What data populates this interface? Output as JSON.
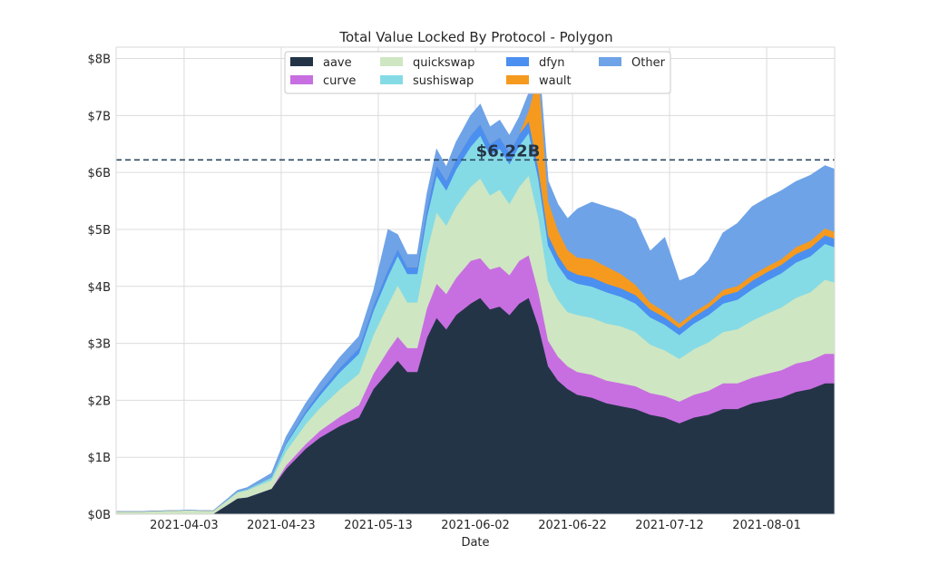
{
  "chart_data": {
    "type": "area",
    "title": "Total Value Locked By Protocol - Polygon",
    "xlabel": "Date",
    "ylabel": "",
    "y_ticks": [
      "$0B",
      "$1B",
      "$2B",
      "$3B",
      "$4B",
      "$5B",
      "$6B",
      "$7B",
      "$8B"
    ],
    "ylim": [
      0,
      8.2
    ],
    "x_range": [
      "2021-03-20",
      "2021-08-15"
    ],
    "x_ticks": [
      "2021-04-03",
      "2021-04-23",
      "2021-05-13",
      "2021-06-02",
      "2021-06-22",
      "2021-07-12",
      "2021-08-01"
    ],
    "grid": true,
    "legend_position": "top-center",
    "reference_line": {
      "value": 6.22,
      "label": "$6.22B",
      "style": "dashed",
      "color": "#2b4a63"
    },
    "dates": [
      "2021-03-20",
      "2021-03-25",
      "2021-03-30",
      "2021-04-04",
      "2021-04-09",
      "2021-04-14",
      "2021-04-16",
      "2021-04-21",
      "2021-04-24",
      "2021-04-28",
      "2021-05-01",
      "2021-05-05",
      "2021-05-09",
      "2021-05-12",
      "2021-05-15",
      "2021-05-17",
      "2021-05-19",
      "2021-05-21",
      "2021-05-23",
      "2021-05-25",
      "2021-05-27",
      "2021-05-29",
      "2021-06-01",
      "2021-06-03",
      "2021-06-05",
      "2021-06-07",
      "2021-06-09",
      "2021-06-11",
      "2021-06-13",
      "2021-06-15",
      "2021-06-17",
      "2021-06-19",
      "2021-06-21",
      "2021-06-23",
      "2021-06-26",
      "2021-06-29",
      "2021-07-02",
      "2021-07-05",
      "2021-07-08",
      "2021-07-11",
      "2021-07-14",
      "2021-07-17",
      "2021-07-20",
      "2021-07-23",
      "2021-07-26",
      "2021-07-29",
      "2021-08-01",
      "2021-08-04",
      "2021-08-07",
      "2021-08-10",
      "2021-08-13",
      "2021-08-15"
    ],
    "series": [
      {
        "name": "aave",
        "color": "#233447",
        "values": [
          0.01,
          0.01,
          0.01,
          0.01,
          0.01,
          0.28,
          0.3,
          0.45,
          0.8,
          1.15,
          1.35,
          1.55,
          1.7,
          2.2,
          2.5,
          2.7,
          2.5,
          2.5,
          3.1,
          3.45,
          3.25,
          3.5,
          3.7,
          3.8,
          3.6,
          3.65,
          3.5,
          3.7,
          3.8,
          3.3,
          2.6,
          2.35,
          2.2,
          2.1,
          2.05,
          1.95,
          1.9,
          1.85,
          1.75,
          1.7,
          1.6,
          1.7,
          1.75,
          1.85,
          1.85,
          1.95,
          2.0,
          2.05,
          2.15,
          2.2,
          2.3,
          2.3
        ]
      },
      {
        "name": "curve",
        "color": "#c76fe0",
        "values": [
          0,
          0,
          0,
          0,
          0,
          0,
          0,
          0,
          0.06,
          0.08,
          0.12,
          0.16,
          0.22,
          0.27,
          0.38,
          0.42,
          0.42,
          0.42,
          0.52,
          0.6,
          0.62,
          0.65,
          0.75,
          0.7,
          0.7,
          0.7,
          0.7,
          0.75,
          0.75,
          0.6,
          0.45,
          0.42,
          0.4,
          0.4,
          0.4,
          0.4,
          0.4,
          0.4,
          0.38,
          0.38,
          0.38,
          0.4,
          0.42,
          0.45,
          0.45,
          0.45,
          0.47,
          0.48,
          0.5,
          0.5,
          0.52,
          0.52
        ]
      },
      {
        "name": "quickswap",
        "color": "#cfe6c2",
        "values": [
          0.04,
          0.04,
          0.05,
          0.06,
          0.05,
          0.1,
          0.12,
          0.15,
          0.25,
          0.35,
          0.4,
          0.48,
          0.55,
          0.68,
          0.8,
          0.9,
          0.8,
          0.8,
          1.0,
          1.25,
          1.2,
          1.25,
          1.3,
          1.4,
          1.3,
          1.35,
          1.25,
          1.3,
          1.4,
          1.3,
          1.05,
          1.0,
          0.95,
          1.0,
          1.0,
          1.0,
          1.0,
          0.95,
          0.85,
          0.8,
          0.75,
          0.8,
          0.85,
          0.9,
          0.95,
          1.0,
          1.05,
          1.1,
          1.15,
          1.2,
          1.3,
          1.25
        ]
      },
      {
        "name": "sushiswap",
        "color": "#85dbe5",
        "values": [
          0,
          0,
          0,
          0,
          0,
          0.02,
          0.02,
          0.05,
          0.12,
          0.18,
          0.22,
          0.3,
          0.35,
          0.42,
          0.5,
          0.52,
          0.5,
          0.5,
          0.6,
          0.65,
          0.62,
          0.65,
          0.7,
          0.75,
          0.7,
          0.72,
          0.7,
          0.72,
          0.75,
          0.68,
          0.62,
          0.6,
          0.58,
          0.55,
          0.55,
          0.55,
          0.52,
          0.5,
          0.48,
          0.45,
          0.42,
          0.45,
          0.48,
          0.5,
          0.52,
          0.55,
          0.58,
          0.6,
          0.62,
          0.63,
          0.63,
          0.62
        ]
      },
      {
        "name": "dfyn",
        "color": "#4b8ff0",
        "values": [
          0,
          0,
          0,
          0,
          0,
          0,
          0,
          0.01,
          0.03,
          0.05,
          0.07,
          0.08,
          0.1,
          0.1,
          0.12,
          0.12,
          0.12,
          0.12,
          0.15,
          0.18,
          0.17,
          0.18,
          0.2,
          0.2,
          0.2,
          0.2,
          0.2,
          0.2,
          0.2,
          0.18,
          0.18,
          0.17,
          0.16,
          0.16,
          0.16,
          0.15,
          0.15,
          0.15,
          0.14,
          0.13,
          0.12,
          0.12,
          0.13,
          0.14,
          0.14,
          0.15,
          0.15,
          0.15,
          0.15,
          0.15,
          0.15,
          0.15
        ]
      },
      {
        "name": "wault",
        "color": "#f59a1f",
        "values": [
          0,
          0,
          0,
          0,
          0,
          0,
          0,
          0,
          0,
          0,
          0,
          0,
          0,
          0,
          0,
          0,
          0,
          0,
          0,
          0,
          0,
          0,
          0,
          0,
          0,
          0,
          0,
          0,
          0.2,
          1.7,
          0.6,
          0.45,
          0.35,
          0.3,
          0.32,
          0.3,
          0.25,
          0.18,
          0.12,
          0.1,
          0.08,
          0.08,
          0.08,
          0.1,
          0.1,
          0.1,
          0.1,
          0.1,
          0.12,
          0.12,
          0.12,
          0.12
        ]
      },
      {
        "name": "Other",
        "color": "#6ea3e8",
        "values": [
          0,
          0,
          0,
          0,
          0,
          0.02,
          0.03,
          0.06,
          0.1,
          0.13,
          0.15,
          0.18,
          0.2,
          0.25,
          0.7,
          0.25,
          0.22,
          0.22,
          0.25,
          0.28,
          0.24,
          0.3,
          0.35,
          0.35,
          0.3,
          0.3,
          0.3,
          0.3,
          0.3,
          0.3,
          0.35,
          0.45,
          0.55,
          0.85,
          1.0,
          1.05,
          1.1,
          1.15,
          0.9,
          1.3,
          0.75,
          0.65,
          0.75,
          1.0,
          1.1,
          1.2,
          1.2,
          1.2,
          1.15,
          1.15,
          1.1,
          1.1
        ]
      }
    ]
  }
}
